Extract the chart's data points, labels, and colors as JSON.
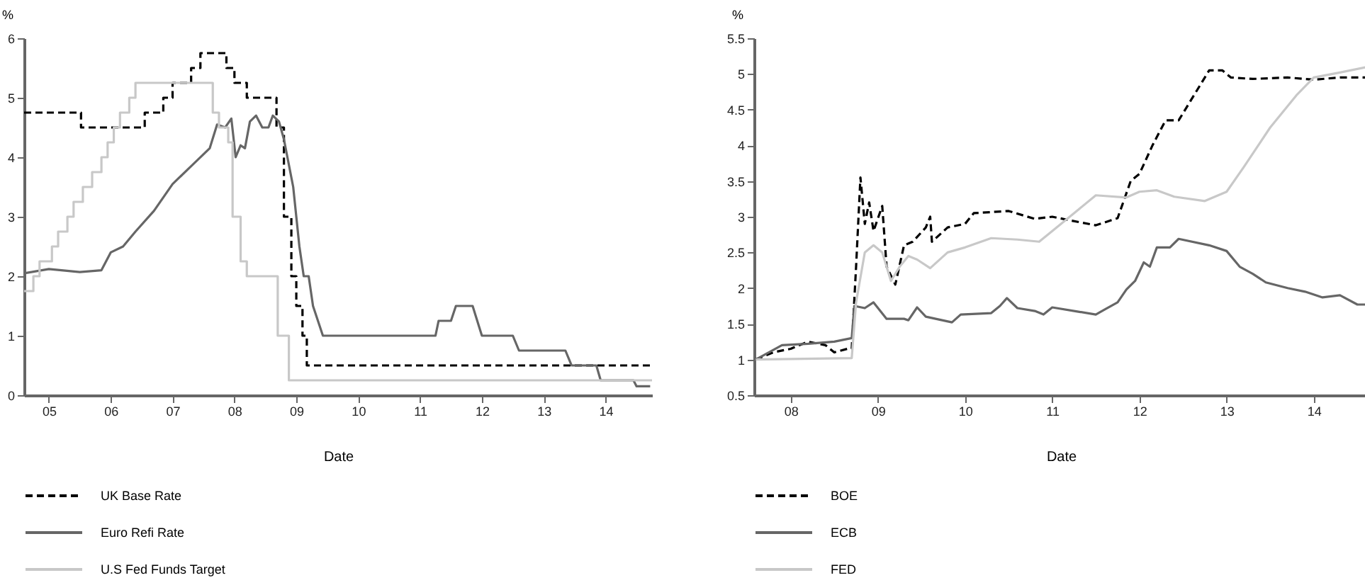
{
  "chart_data": [
    {
      "type": "line",
      "xlabel": "Date",
      "ylabel": "%",
      "xlim": [
        2004.6,
        2014.75
      ],
      "ylim": [
        0,
        6
      ],
      "yticks": [
        0,
        1,
        2,
        3,
        4,
        5,
        6
      ],
      "xticks": [
        {
          "value": 2005,
          "label": "05"
        },
        {
          "value": 2006,
          "label": "06"
        },
        {
          "value": 2007,
          "label": "07"
        },
        {
          "value": 2008,
          "label": "08"
        },
        {
          "value": 2009,
          "label": "09"
        },
        {
          "value": 2010,
          "label": "10"
        },
        {
          "value": 2011,
          "label": "11"
        },
        {
          "value": 2012,
          "label": "12"
        },
        {
          "value": 2013,
          "label": "13"
        },
        {
          "value": 2014,
          "label": "14"
        }
      ],
      "legend": "bottom",
      "grid": false,
      "series": [
        {
          "name": "UK Base Rate",
          "type": "step",
          "color": "#000000",
          "line_style": "dashed",
          "x": [
            2004.6,
            2005.52,
            2006.55,
            2006.85,
            2007.0,
            2007.3,
            2007.45,
            2007.87,
            2008.0,
            2008.2,
            2008.68,
            2008.8,
            2008.92,
            2009.0,
            2009.1,
            2009.17,
            2014.75
          ],
          "values": [
            4.75,
            4.5,
            4.75,
            5.0,
            5.25,
            5.5,
            5.75,
            5.5,
            5.25,
            5.0,
            4.5,
            3.0,
            2.0,
            1.5,
            1.0,
            0.5,
            0.5
          ]
        },
        {
          "name": "Euro Refi Rate",
          "color": "#666666",
          "line_style": "solid",
          "x": [
            2004.6,
            2005.0,
            2005.5,
            2005.85,
            2006.0,
            2006.2,
            2006.4,
            2006.7,
            2007.0,
            2007.3,
            2007.6,
            2007.72,
            2007.85,
            2007.95,
            2008.02,
            2008.1,
            2008.17,
            2008.25,
            2008.35,
            2008.45,
            2008.55,
            2008.62,
            2008.72,
            2008.8,
            2008.95,
            2009.05,
            2009.12,
            2009.2,
            2009.27,
            2009.43,
            2011.25,
            2011.3,
            2011.5,
            2011.58,
            2011.85,
            2012.0,
            2012.5,
            2012.6,
            2013.35,
            2013.45,
            2013.85,
            2013.92,
            2014.45,
            2014.5,
            2014.72
          ],
          "values": [
            2.05,
            2.12,
            2.07,
            2.1,
            2.4,
            2.5,
            2.75,
            3.1,
            3.55,
            3.85,
            4.15,
            4.55,
            4.5,
            4.65,
            4.0,
            4.2,
            4.15,
            4.6,
            4.7,
            4.5,
            4.5,
            4.7,
            4.6,
            4.3,
            3.5,
            2.5,
            2.0,
            2.0,
            1.5,
            1.0,
            1.0,
            1.25,
            1.25,
            1.5,
            1.5,
            1.0,
            1.0,
            0.75,
            0.75,
            0.5,
            0.5,
            0.25,
            0.25,
            0.15,
            0.15
          ]
        },
        {
          "name": "U.S Fed Funds Target",
          "type": "step",
          "color": "#c8c8c8",
          "line_style": "solid",
          "x": [
            2004.6,
            2004.75,
            2004.85,
            2005.05,
            2005.15,
            2005.3,
            2005.4,
            2005.55,
            2005.7,
            2005.85,
            2005.95,
            2006.05,
            2006.15,
            2006.3,
            2006.4,
            2007.65,
            2007.75,
            2007.9,
            2007.97,
            2008.1,
            2008.2,
            2008.7,
            2008.88,
            2014.75
          ],
          "values": [
            1.75,
            2.0,
            2.25,
            2.5,
            2.75,
            3.0,
            3.25,
            3.5,
            3.75,
            4.0,
            4.25,
            4.5,
            4.75,
            5.0,
            5.25,
            4.75,
            4.5,
            4.25,
            3.0,
            2.25,
            2.0,
            1.0,
            0.25,
            0.25
          ]
        }
      ]
    },
    {
      "type": "line",
      "xlabel": "Date",
      "ylabel": "%",
      "xlim": [
        2007.58,
        2014.62
      ],
      "ylim": [
        0.5,
        5.5
      ],
      "yticks": [
        0.5,
        1,
        1.5,
        2,
        2.5,
        3,
        3.5,
        4,
        4.5,
        5,
        5.5
      ],
      "xticks": [
        {
          "value": 2008,
          "label": "08"
        },
        {
          "value": 2009,
          "label": "09"
        },
        {
          "value": 2010,
          "label": "10"
        },
        {
          "value": 2011,
          "label": "11"
        },
        {
          "value": 2012,
          "label": "12"
        },
        {
          "value": 2013,
          "label": "13"
        },
        {
          "value": 2014,
          "label": "14"
        }
      ],
      "legend": "bottom",
      "grid": false,
      "series": [
        {
          "name": "BOE",
          "color": "#000000",
          "line_style": "dashed",
          "x": [
            2007.6,
            2007.8,
            2008.0,
            2008.2,
            2008.4,
            2008.5,
            2008.65,
            2008.7,
            2008.75,
            2008.8,
            2008.85,
            2008.9,
            2008.95,
            2009.05,
            2009.1,
            2009.2,
            2009.3,
            2009.4,
            2009.55,
            2009.6,
            2009.62,
            2009.8,
            2010.0,
            2010.1,
            2010.5,
            2010.8,
            2011.0,
            2011.2,
            2011.5,
            2011.75,
            2011.9,
            2012.0,
            2012.15,
            2012.3,
            2012.45,
            2012.6,
            2012.8,
            2012.95,
            2013.05,
            2013.3,
            2013.7,
            2014.0,
            2014.3,
            2014.62
          ],
          "values": [
            1.0,
            1.1,
            1.15,
            1.25,
            1.2,
            1.1,
            1.15,
            1.15,
            2.3,
            3.55,
            2.9,
            3.2,
            2.8,
            3.15,
            2.3,
            2.05,
            2.6,
            2.65,
            2.85,
            3.0,
            2.65,
            2.85,
            2.9,
            3.05,
            3.08,
            2.97,
            3.0,
            2.95,
            2.88,
            2.98,
            3.5,
            3.6,
            4.0,
            4.35,
            4.35,
            4.65,
            5.05,
            5.05,
            4.95,
            4.93,
            4.95,
            4.92,
            4.95,
            4.95
          ]
        },
        {
          "name": "ECB",
          "color": "#666666",
          "line_style": "solid",
          "x": [
            2007.6,
            2007.9,
            2008.2,
            2008.5,
            2008.7,
            2008.73,
            2008.85,
            2008.95,
            2009.1,
            2009.3,
            2009.35,
            2009.45,
            2009.55,
            2009.85,
            2009.95,
            2010.3,
            2010.4,
            2010.48,
            2010.6,
            2010.8,
            2010.9,
            2011.0,
            2011.3,
            2011.5,
            2011.6,
            2011.75,
            2011.85,
            2011.95,
            2012.05,
            2012.12,
            2012.2,
            2012.35,
            2012.45,
            2012.8,
            2013.0,
            2013.15,
            2013.3,
            2013.45,
            2013.7,
            2013.9,
            2014.1,
            2014.3,
            2014.5,
            2014.62
          ],
          "values": [
            1.0,
            1.2,
            1.22,
            1.25,
            1.3,
            1.75,
            1.72,
            1.8,
            1.57,
            1.57,
            1.55,
            1.73,
            1.6,
            1.52,
            1.63,
            1.65,
            1.75,
            1.86,
            1.72,
            1.68,
            1.63,
            1.73,
            1.67,
            1.63,
            1.7,
            1.8,
            1.98,
            2.1,
            2.36,
            2.3,
            2.57,
            2.57,
            2.69,
            2.6,
            2.52,
            2.3,
            2.2,
            2.08,
            2.0,
            1.95,
            1.87,
            1.9,
            1.77,
            1.77
          ]
        },
        {
          "name": "FED",
          "color": "#c8c8c8",
          "line_style": "solid",
          "x": [
            2007.6,
            2008.7,
            2008.75,
            2008.85,
            2008.95,
            2009.05,
            2009.15,
            2009.25,
            2009.35,
            2009.45,
            2009.6,
            2009.8,
            2010.0,
            2010.3,
            2010.6,
            2010.85,
            2011.0,
            2011.3,
            2011.5,
            2011.85,
            2012.0,
            2012.2,
            2012.4,
            2012.75,
            2013.0,
            2013.2,
            2013.5,
            2013.8,
            2014.0,
            2014.3,
            2014.62
          ],
          "values": [
            1.0,
            1.02,
            1.8,
            2.5,
            2.6,
            2.5,
            2.1,
            2.3,
            2.45,
            2.4,
            2.28,
            2.5,
            2.57,
            2.7,
            2.68,
            2.65,
            2.8,
            3.1,
            3.3,
            3.27,
            3.35,
            3.37,
            3.28,
            3.22,
            3.35,
            3.7,
            4.25,
            4.7,
            4.95,
            5.02,
            5.1
          ]
        }
      ]
    }
  ]
}
